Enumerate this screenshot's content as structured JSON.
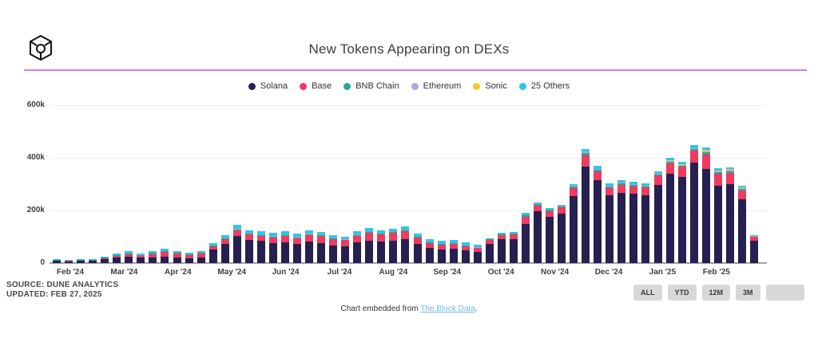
{
  "header": {
    "title": "New Tokens Appearing on DEXs",
    "logo_icon": "the-block-cube-logo"
  },
  "legend": [
    {
      "label": "Solana",
      "color": "#262050"
    },
    {
      "label": "Base",
      "color": "#ee3b5e"
    },
    {
      "label": "BNB Chain",
      "color": "#29a79c"
    },
    {
      "label": "Ethereum",
      "color": "#b3a6e0"
    },
    {
      "label": "Sonic",
      "color": "#f2c83a"
    },
    {
      "label": "25 Others",
      "color": "#30c4e8"
    }
  ],
  "chart_data": {
    "type": "bar",
    "stacked": true,
    "title": "New Tokens Appearing on DEXs",
    "values_unit": "thousands of tokens (k)",
    "cadence": "weekly bars",
    "n_bars": 59,
    "y_ticks": [
      "0",
      "200k",
      "400k",
      "600k"
    ],
    "ylim": [
      0,
      600
    ],
    "grid": "horizontal only",
    "legend_position": "top-center",
    "x_tick_labels": [
      "Feb '24",
      "Mar '24",
      "Apr '24",
      "May '24",
      "Jun '24",
      "Jul '24",
      "Aug '24",
      "Sep '24",
      "Oct '24",
      "Nov '24",
      "Dec '24",
      "Jan '25",
      "Feb '25"
    ],
    "series": [
      {
        "name": "Solana",
        "color": "#262050",
        "values": [
          9,
          7,
          9,
          9,
          14,
          20,
          25,
          21,
          20,
          25,
          21,
          18,
          21,
          53,
          74,
          102,
          88,
          84,
          75,
          78,
          73,
          81,
          77,
          68,
          65,
          78,
          86,
          81,
          85,
          90,
          73,
          57,
          53,
          55,
          48,
          43,
          74,
          90,
          92,
          148,
          196,
          177,
          189,
          255,
          367,
          315,
          257,
          268,
          264,
          257,
          298,
          340,
          327,
          382,
          359,
          295,
          299,
          242,
          86
        ]
      },
      {
        "name": "Base",
        "color": "#ee3b5e",
        "values": [
          1,
          1,
          1,
          1,
          4,
          6,
          7,
          6,
          14,
          16,
          14,
          12,
          14,
          12,
          17,
          23,
          20,
          19,
          23,
          24,
          22,
          25,
          26,
          23,
          22,
          26,
          29,
          28,
          29,
          31,
          25,
          18,
          17,
          18,
          16,
          14,
          13,
          16,
          17,
          27,
          23,
          21,
          22,
          30,
          43,
          33,
          27,
          28,
          28,
          30,
          35,
          40,
          39,
          45,
          53,
          43,
          44,
          35,
          13
        ]
      },
      {
        "name": "BNB Chain",
        "color": "#29a79c",
        "values": [
          1,
          1,
          1,
          1,
          2,
          4,
          4,
          4,
          4,
          4,
          4,
          3,
          4,
          2,
          2,
          3,
          3,
          2,
          3,
          4,
          3,
          4,
          2,
          2,
          2,
          3,
          3,
          3,
          3,
          3,
          2,
          3,
          3,
          3,
          2,
          2,
          3,
          3,
          3,
          6,
          5,
          4,
          4,
          6,
          9,
          7,
          6,
          6,
          6,
          3,
          3,
          4,
          4,
          5,
          9,
          7,
          7,
          6,
          2
        ]
      },
      {
        "name": "Ethereum",
        "color": "#b3a6e0",
        "values": [
          0,
          0,
          0,
          0,
          0,
          1,
          1,
          1,
          1,
          1,
          1,
          1,
          1,
          1,
          1,
          1,
          1,
          1,
          1,
          1,
          1,
          1,
          1,
          1,
          1,
          1,
          1,
          1,
          1,
          1,
          1,
          1,
          1,
          1,
          1,
          1,
          1,
          1,
          1,
          2,
          2,
          2,
          2,
          3,
          4,
          4,
          3,
          3,
          3,
          3,
          3,
          4,
          4,
          4,
          4,
          4,
          4,
          3,
          1
        ]
      },
      {
        "name": "Sonic",
        "color": "#f2c83a",
        "values": [
          0,
          0,
          0,
          0,
          0,
          0,
          0,
          0,
          0,
          0,
          0,
          0,
          0,
          0,
          0,
          0,
          0,
          0,
          0,
          0,
          0,
          0,
          0,
          0,
          0,
          0,
          0,
          0,
          0,
          0,
          0,
          0,
          0,
          0,
          0,
          0,
          0,
          0,
          0,
          0,
          0,
          0,
          0,
          0,
          0,
          0,
          0,
          0,
          0,
          1,
          2,
          2,
          2,
          2,
          4,
          4,
          4,
          3,
          1
        ]
      },
      {
        "name": "25 Others",
        "color": "#30c4e8",
        "values": [
          4,
          3,
          4,
          4,
          5,
          6,
          8,
          6,
          6,
          9,
          7,
          6,
          7,
          7,
          11,
          16,
          13,
          14,
          13,
          13,
          13,
          14,
          12,
          11,
          10,
          12,
          13,
          12,
          12,
          14,
          11,
          13,
          11,
          11,
          11,
          10,
          4,
          5,
          5,
          7,
          4,
          4,
          5,
          6,
          9,
          11,
          9,
          10,
          9,
          8,
          9,
          10,
          9,
          12,
          9,
          7,
          7,
          6,
          2
        ]
      }
    ]
  },
  "source": {
    "line1": "SOURCE: DUNE ANALYTICS",
    "line2": "UPDATED: FEB 27, 2025"
  },
  "range_buttons": [
    {
      "label": "ALL"
    },
    {
      "label": "YTD"
    },
    {
      "label": "12M"
    },
    {
      "label": "3M"
    },
    {
      "label": ""
    }
  ],
  "footer": {
    "prefix": "Chart embedded from ",
    "link_text": "The Block Data",
    "suffix": "."
  }
}
